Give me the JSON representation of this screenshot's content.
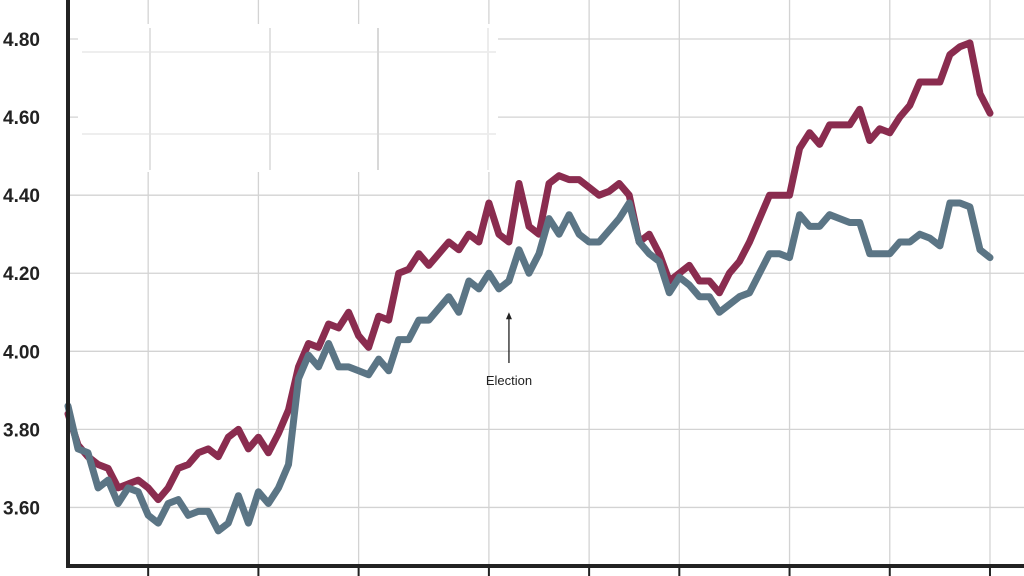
{
  "chart_data": {
    "type": "line",
    "title": "",
    "xlabel": "",
    "ylabel": "",
    "ylim": [
      3.45,
      4.9
    ],
    "y_ticks": [
      {
        "value": 3.6,
        "label": "3.60"
      },
      {
        "value": 3.8,
        "label": "3.80"
      },
      {
        "value": 4.0,
        "label": "4.00"
      },
      {
        "value": 4.2,
        "label": "4.20"
      },
      {
        "value": 4.4,
        "label": "4.40"
      },
      {
        "value": 4.6,
        "label": "4.60"
      },
      {
        "value": 4.8,
        "label": "4.80"
      }
    ],
    "x_range": [
      0,
      93
    ],
    "x_ticks": [
      8,
      19,
      29,
      42,
      52,
      61,
      72,
      82,
      92
    ],
    "grid": true,
    "legend": "none",
    "annotation": {
      "text": "Election",
      "x": 44
    },
    "series": [
      {
        "color": "#8a2c4f",
        "values": [
          3.84,
          3.76,
          3.73,
          3.71,
          3.7,
          3.65,
          3.66,
          3.67,
          3.65,
          3.62,
          3.65,
          3.7,
          3.71,
          3.74,
          3.75,
          3.73,
          3.78,
          3.8,
          3.75,
          3.78,
          3.74,
          3.79,
          3.85,
          3.96,
          4.02,
          4.01,
          4.07,
          4.06,
          4.1,
          4.04,
          4.01,
          4.09,
          4.08,
          4.2,
          4.21,
          4.25,
          4.22,
          4.25,
          4.28,
          4.26,
          4.3,
          4.28,
          4.38,
          4.3,
          4.28,
          4.43,
          4.32,
          4.3,
          4.43,
          4.45,
          4.44,
          4.44,
          4.42,
          4.4,
          4.41,
          4.43,
          4.4,
          4.28,
          4.3,
          4.25,
          4.18,
          4.2,
          4.22,
          4.18,
          4.18,
          4.15,
          4.2,
          4.23,
          4.28,
          4.34,
          4.4,
          4.4,
          4.4,
          4.52,
          4.56,
          4.53,
          4.58,
          4.58,
          4.58,
          4.62,
          4.54,
          4.57,
          4.56,
          4.6,
          4.63,
          4.69,
          4.69,
          4.69,
          4.76,
          4.78,
          4.79,
          4.66,
          4.61
        ]
      },
      {
        "color": "#5b7585",
        "values": [
          3.86,
          3.75,
          3.74,
          3.65,
          3.67,
          3.61,
          3.65,
          3.64,
          3.58,
          3.56,
          3.61,
          3.62,
          3.58,
          3.59,
          3.59,
          3.54,
          3.56,
          3.63,
          3.56,
          3.64,
          3.61,
          3.65,
          3.71,
          3.93,
          3.99,
          3.96,
          4.02,
          3.96,
          3.96,
          3.95,
          3.94,
          3.98,
          3.95,
          4.03,
          4.03,
          4.08,
          4.08,
          4.11,
          4.14,
          4.1,
          4.18,
          4.16,
          4.2,
          4.16,
          4.18,
          4.26,
          4.2,
          4.25,
          4.34,
          4.3,
          4.35,
          4.3,
          4.28,
          4.28,
          4.31,
          4.34,
          4.38,
          4.28,
          4.25,
          4.23,
          4.15,
          4.19,
          4.17,
          4.14,
          4.14,
          4.1,
          4.12,
          4.14,
          4.15,
          4.2,
          4.25,
          4.25,
          4.24,
          4.35,
          4.32,
          4.32,
          4.35,
          4.34,
          4.33,
          4.33,
          4.25,
          4.25,
          4.25,
          4.28,
          4.28,
          4.3,
          4.29,
          4.27,
          4.38,
          4.38,
          4.37,
          4.26,
          4.24
        ]
      }
    ]
  }
}
